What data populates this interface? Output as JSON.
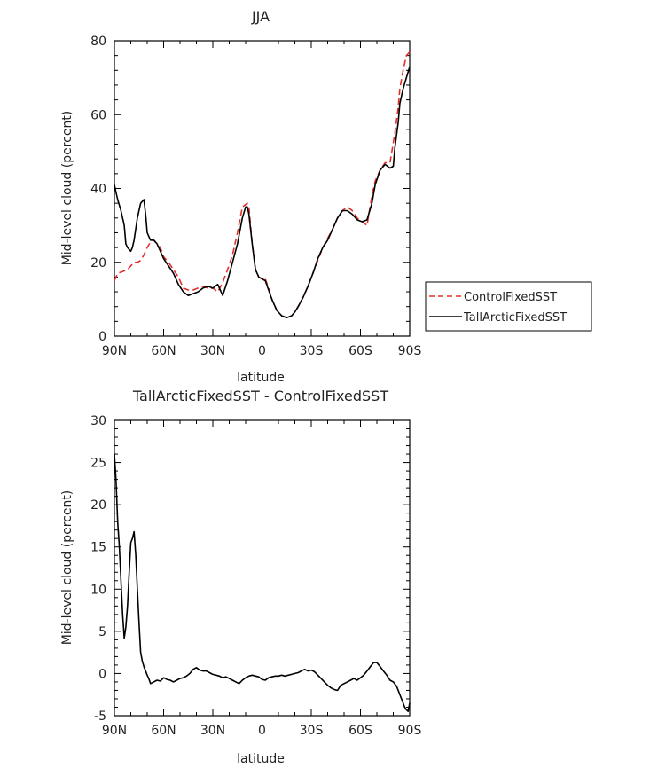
{
  "chart_data": [
    {
      "type": "line",
      "title": "JJA",
      "xlabel": "latitude",
      "ylabel": "Mid-level cloud (percent)",
      "xlim": [
        90,
        -90
      ],
      "ylim": [
        0,
        80
      ],
      "xticks": [
        90,
        60,
        30,
        0,
        -30,
        -60,
        -90
      ],
      "xticklabels": [
        "90N",
        "60N",
        "30N",
        "0",
        "30S",
        "60S",
        "90S"
      ],
      "yticks": [
        0,
        20,
        40,
        60,
        80
      ],
      "yticklabels": [
        "0",
        "20",
        "40",
        "60",
        "80"
      ],
      "legend_position": "right",
      "series": [
        {
          "name": "ControlFixedSST",
          "color": "#e0302a",
          "dash": "dashed",
          "x": [
            90,
            88,
            85,
            82,
            80,
            78,
            76,
            74,
            72,
            70,
            68,
            66,
            64,
            62,
            60,
            57,
            54,
            51,
            48,
            45,
            42,
            39,
            36,
            33,
            30,
            27,
            24,
            21,
            18,
            15,
            12,
            9,
            8,
            6,
            4,
            2,
            0,
            -2,
            -4,
            -6,
            -9,
            -12,
            -15,
            -18,
            -20,
            -22,
            -25,
            -28,
            -31,
            -34,
            -37,
            -40,
            -43,
            -46,
            -49,
            -52,
            -55,
            -58,
            -61,
            -64,
            -67,
            -69,
            -72,
            -75,
            -78,
            -81,
            -83,
            -84,
            -86,
            -88,
            -89,
            -90
          ],
          "values": [
            15,
            17,
            17.5,
            18,
            19,
            20,
            20,
            20.5,
            22,
            24,
            25.5,
            26,
            25,
            24,
            21.5,
            20,
            18,
            16,
            13,
            12.5,
            12.5,
            13,
            13.5,
            13,
            13,
            12,
            14.5,
            18,
            22,
            28,
            35,
            36,
            35,
            25,
            18,
            16,
            15.5,
            15.5,
            13,
            10,
            7,
            5.5,
            5,
            5.5,
            6.5,
            8,
            10.5,
            13.5,
            17,
            20.5,
            24,
            26.5,
            29,
            32,
            34,
            35,
            34,
            32,
            31,
            30,
            38,
            42,
            45,
            47,
            47,
            55,
            62,
            67,
            72,
            76,
            76.5,
            77
          ]
        },
        {
          "name": "TallArcticFixedSST",
          "color": "#000000",
          "dash": "solid",
          "x": [
            90,
            89,
            88,
            86,
            84,
            83,
            82,
            80,
            79,
            78,
            76,
            74,
            72,
            71,
            70,
            68,
            66,
            64,
            62,
            60,
            57,
            54,
            51,
            48,
            45,
            42,
            39,
            36,
            33,
            30,
            27,
            24,
            21,
            18,
            15,
            12,
            10,
            9,
            8,
            6,
            4,
            2,
            0,
            -2,
            -4,
            -6,
            -9,
            -12,
            -15,
            -18,
            -20,
            -22,
            -25,
            -28,
            -31,
            -34,
            -37,
            -40,
            -43,
            -46,
            -49,
            -52,
            -55,
            -58,
            -61,
            -64,
            -67,
            -69,
            -72,
            -75,
            -78,
            -80,
            -81,
            -83,
            -84,
            -86,
            -88,
            -90
          ],
          "values": [
            41,
            39,
            37,
            34,
            30,
            25,
            24,
            23,
            24,
            26,
            32,
            36,
            37,
            33,
            28,
            26,
            26,
            25,
            23,
            21,
            19,
            17,
            14,
            12,
            11,
            11.5,
            12,
            13,
            13.5,
            13,
            14,
            11,
            15,
            20,
            25,
            32,
            35,
            35,
            33,
            25,
            18,
            16,
            15.5,
            15,
            12.5,
            10,
            7,
            5.5,
            5,
            5.5,
            6.5,
            8,
            10.5,
            13.5,
            17,
            21,
            24,
            26,
            29,
            32,
            34,
            34,
            33,
            31.5,
            31,
            31.5,
            36,
            41,
            45,
            46.5,
            45.5,
            46,
            51,
            58,
            63,
            67,
            70,
            73
          ]
        }
      ]
    },
    {
      "type": "line",
      "title": "TallArcticFixedSST - ControlFixedSST",
      "xlabel": "latitude",
      "ylabel": "Mid-level cloud (percent)",
      "xlim": [
        90,
        -90
      ],
      "ylim": [
        -5,
        30
      ],
      "xticks": [
        90,
        60,
        30,
        0,
        -30,
        -60,
        -90
      ],
      "xticklabels": [
        "90N",
        "60N",
        "30N",
        "0",
        "30S",
        "60S",
        "90S"
      ],
      "yticks": [
        -5,
        0,
        5,
        10,
        15,
        20,
        25,
        30
      ],
      "yticklabels": [
        "-5",
        "0",
        "5",
        "10",
        "15",
        "20",
        "25",
        "30"
      ],
      "series": [
        {
          "name": "TallArcticFixedSST - ControlFixedSST",
          "color": "#000000",
          "dash": "solid",
          "x": [
            90,
            89,
            88,
            87,
            86,
            85,
            84,
            83,
            82,
            81,
            80,
            79,
            78,
            77,
            76,
            75,
            74,
            73,
            72,
            71,
            70,
            69,
            68,
            66,
            64,
            62,
            61,
            60,
            58,
            56,
            54,
            52,
            50,
            48,
            46,
            44,
            42,
            40,
            38,
            36,
            34,
            32,
            30,
            28,
            26,
            24,
            22,
            20,
            18,
            16,
            14,
            12,
            10,
            8,
            6,
            4,
            2,
            0,
            -2,
            -4,
            -6,
            -8,
            -10,
            -12,
            -14,
            -16,
            -18,
            -20,
            -22,
            -24,
            -26,
            -28,
            -30,
            -32,
            -34,
            -36,
            -38,
            -40,
            -42,
            -44,
            -46,
            -48,
            -50,
            -52,
            -54,
            -56,
            -58,
            -60,
            -62,
            -64,
            -66,
            -68,
            -70,
            -72,
            -74,
            -76,
            -78,
            -80,
            -82,
            -84,
            -86,
            -87,
            -88,
            -89,
            -90
          ],
          "values": [
            26,
            23,
            18,
            15,
            11,
            7,
            4.2,
            5.5,
            8,
            12,
            15.5,
            16,
            16.8,
            14,
            10,
            6,
            2.5,
            1.5,
            0.8,
            0.3,
            -0.2,
            -0.6,
            -1.2,
            -1,
            -0.8,
            -0.9,
            -0.7,
            -0.5,
            -0.7,
            -0.8,
            -1,
            -0.8,
            -0.6,
            -0.5,
            -0.3,
            0,
            0.5,
            0.7,
            0.4,
            0.3,
            0.3,
            0.1,
            -0.1,
            -0.2,
            -0.3,
            -0.5,
            -0.4,
            -0.6,
            -0.8,
            -1,
            -1.2,
            -0.8,
            -0.5,
            -0.3,
            -0.2,
            -0.3,
            -0.4,
            -0.7,
            -0.8,
            -0.5,
            -0.4,
            -0.3,
            -0.3,
            -0.2,
            -0.3,
            -0.2,
            -0.1,
            0,
            0.1,
            0.3,
            0.5,
            0.3,
            0.4,
            0.2,
            -0.2,
            -0.6,
            -1,
            -1.4,
            -1.7,
            -1.9,
            -2,
            -1.4,
            -1.2,
            -1,
            -0.8,
            -0.6,
            -0.8,
            -0.5,
            -0.2,
            0.3,
            0.8,
            1.3,
            1.3,
            0.8,
            0.3,
            -0.2,
            -0.8,
            -1,
            -1.5,
            -2.5,
            -3.5,
            -4,
            -4.3,
            -4.5,
            -3.5
          ]
        }
      ]
    }
  ]
}
